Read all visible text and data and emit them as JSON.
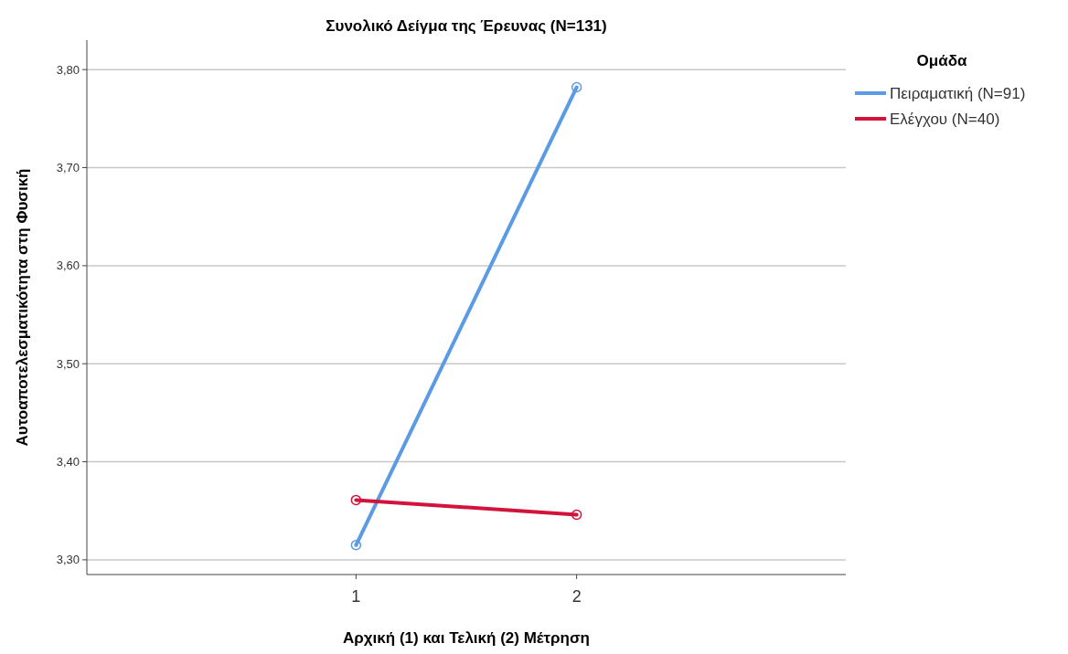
{
  "chart_data": {
    "type": "line",
    "title": "Συνολικό Δείγμα της Έρευνας (N=131)",
    "xlabel": "Αρχική (1) και Τελική (2) Μέτρηση",
    "ylabel": "Αυτοαποτελεσματικότητα στη Φυσική",
    "legend_title": "Ομάδα",
    "categories": [
      "1",
      "2"
    ],
    "series": [
      {
        "name": "Πειραματική (N=91)",
        "color": "#5b9be6",
        "values": [
          3.315,
          3.782
        ]
      },
      {
        "name": "Ελέγχου (N=40)",
        "color": "#d2143c",
        "values": [
          3.361,
          3.346
        ]
      }
    ],
    "ylim": [
      3.285,
      3.83
    ],
    "yticks": [
      {
        "value": 3.3,
        "label": "3,30"
      },
      {
        "value": 3.4,
        "label": "3,40"
      },
      {
        "value": 3.5,
        "label": "3,50"
      },
      {
        "value": 3.6,
        "label": "3,60"
      },
      {
        "value": 3.7,
        "label": "3,70"
      },
      {
        "value": 3.8,
        "label": "3,80"
      }
    ],
    "grid": "y",
    "legend": "top right",
    "marker": "circle",
    "line_style": "solid"
  }
}
